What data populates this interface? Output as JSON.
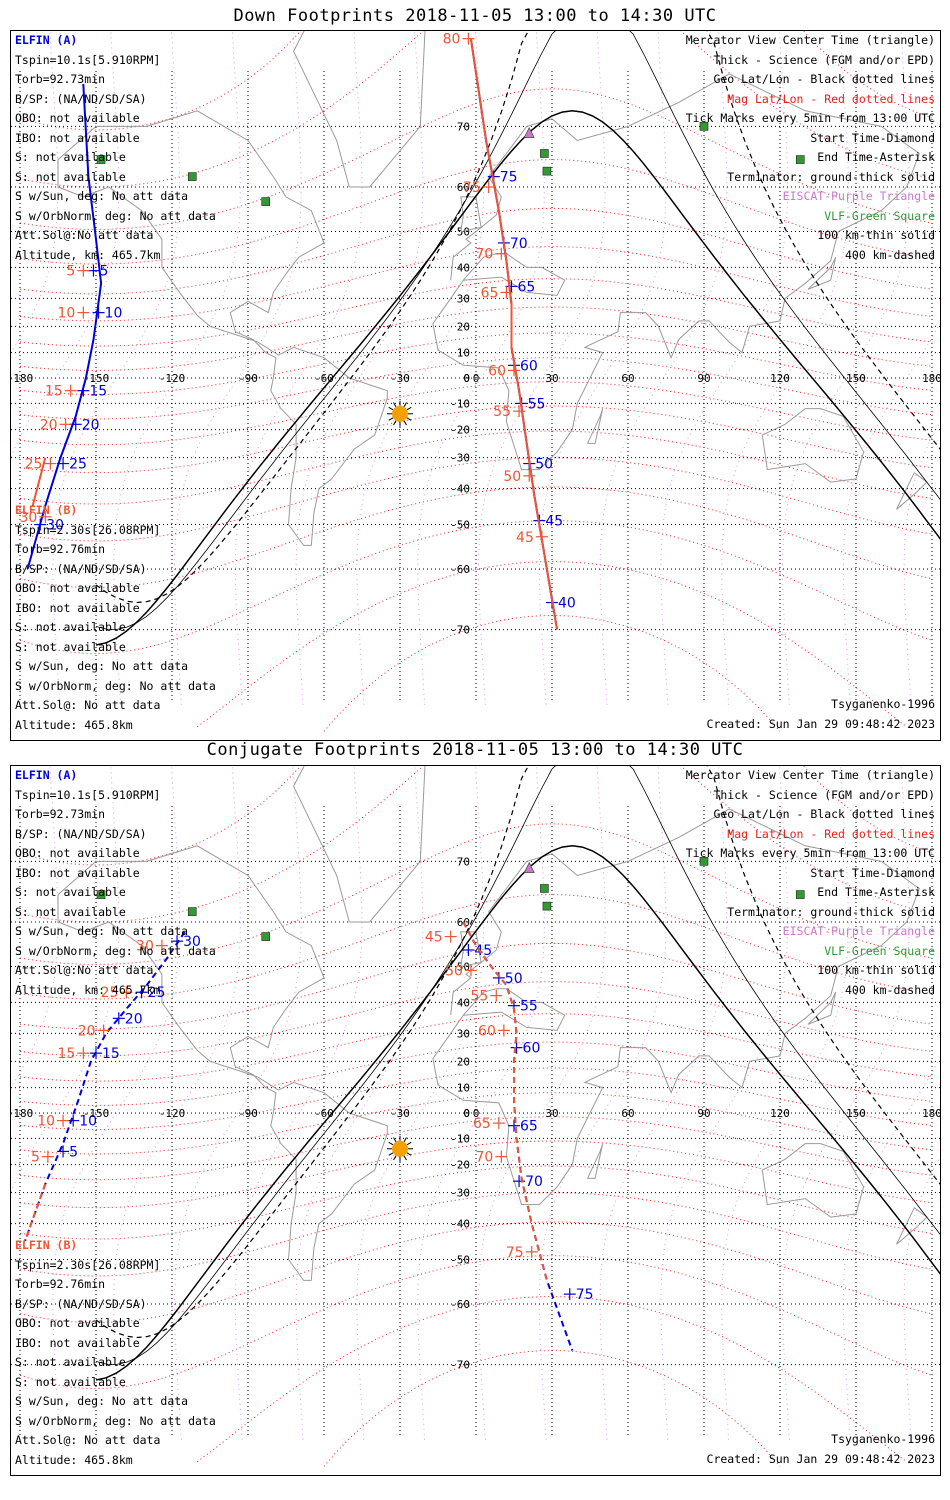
{
  "panels": [
    {
      "title": "Down Footprints 2018-11-05 13:00 to 14:30 UTC",
      "elfin_a": [
        "ELFIN (A)",
        "Tspin=10.1s[5.910RPM]",
        "Torb=92.73min",
        "B/SP: (NA/ND/SD/SA)",
        "OBO: not available",
        "IBO: not available",
        "S: not available",
        "S: not available",
        "S w/Sun, deg: No att data",
        "S w/OrbNorm, deg: No att data",
        "Att.Sol@:No att data",
        "Altitude, km: 465.7km"
      ],
      "elfin_b": [
        "ELFIN (B)",
        "Tspin=2.30s[26.08RPM]",
        "Torb=92.76min",
        "B/SP: (NA/ND/SD/SA)",
        "OBO: not available",
        "IBO: not available",
        "S: not available",
        "S: not available",
        "S w/Sun, deg: No att data",
        "S w/OrbNorm, deg: No att data",
        "Att.Sol@: No att data",
        "Altitude: 465.8km"
      ]
    },
    {
      "title": "Conjugate Footprints 2018-11-05 13:00 to 14:30 UTC",
      "elfin_a": [
        "ELFIN (A)",
        "Tspin=10.1s[5.910RPM]",
        "Torb=92.73min",
        "B/SP: (NA/ND/SD/SA)",
        "OBO: not available",
        "IBO: not available",
        "S: not available",
        "S: not available",
        "S w/Sun, deg: No att data",
        "S w/OrbNorm, deg: No att data",
        "Att.Sol@:No att data",
        "Altitude, km: 465.7km"
      ],
      "elfin_b": [
        "ELFIN (B)",
        "Tspin=2.30s[26.08RPM]",
        "Torb=92.76min",
        "B/SP: (NA/ND/SD/SA)",
        "OBO: not available",
        "IBO: not available",
        "S: not available",
        "S: not available",
        "S w/Sun, deg: No att data",
        "S w/OrbNorm, deg: No att data",
        "Att.Sol@: No att data",
        "Altitude: 465.8km"
      ]
    }
  ],
  "legend": [
    {
      "text": "Mercator View Center Time (triangle)",
      "color": "#000000"
    },
    {
      "text": "Thick - Science (FGM and/or EPD)",
      "color": "#000000"
    },
    {
      "text": "Geo Lat/Lon - Black dotted lines",
      "color": "#000000"
    },
    {
      "text": "Mag Lat/Lon - Red dotted lines",
      "color": "#e8201c"
    },
    {
      "text": "Tick Marks every 5min from 13:00 UTC",
      "color": "#000000"
    },
    {
      "text": "Start Time-Diamond",
      "color": "#000000"
    },
    {
      "text": "End Time-Asterisk",
      "color": "#000000"
    },
    {
      "text": "Terminator: ground-thick solid",
      "color": "#000000"
    },
    {
      "text": "EISCAT-Purple Triangle",
      "color": "#cc77cc"
    },
    {
      "text": "VLF-Green Square",
      "color": "#339933"
    },
    {
      "text": "100 km-thin solid",
      "color": "#000000"
    },
    {
      "text": "400 km-dashed",
      "color": "#000000"
    }
  ],
  "footer": {
    "model": "Tsyganenko-1996",
    "created": "Created: Sun Jan 29 09:48:42 2023"
  },
  "colors": {
    "elfin_a": "#0000dd",
    "elfin_b": "#ee5533",
    "mag_grid": "#ee2222",
    "sun": "#f5a000",
    "eiscat": "#cc77cc",
    "vlf": "#339933"
  },
  "chart_data": [
    {
      "type": "scatter",
      "title": "Down Footprints 2018-11-05 13:00 to 14:30 UTC",
      "projection": "mercator",
      "xlim": [
        -180,
        180
      ],
      "x_ticks": [
        -180,
        -150,
        -120,
        -90,
        -60,
        -30,
        0,
        30,
        60,
        90,
        120,
        150,
        180
      ],
      "y_ticks": [
        70,
        60,
        50,
        40,
        30,
        20,
        10,
        0,
        -10,
        -20,
        -30,
        -40,
        -50,
        -60,
        -70
      ],
      "grid": true,
      "series": [
        {
          "name": "ELFIN (A)",
          "track": [
            [
              -155,
              75
            ],
            [
              -153,
              62
            ],
            [
              -150,
              48
            ],
            [
              -148,
              35
            ],
            [
              -151,
              15
            ],
            [
              -154,
              0
            ],
            [
              -158,
              -15
            ],
            [
              -164,
              -30
            ],
            [
              -170,
              -45
            ],
            [
              -177,
              -60
            ]
          ],
          "ticks": [
            {
              "label": "5",
              "lon": -151,
              "lat": 39
            },
            {
              "label": "10",
              "lon": -149,
              "lat": 25
            },
            {
              "label": "15",
              "lon": -155,
              "lat": -5
            },
            {
              "label": "20",
              "lon": -158,
              "lat": -18
            },
            {
              "label": "25",
              "lon": -163,
              "lat": -32
            },
            {
              "label": "30",
              "lon": -172,
              "lat": -50
            }
          ]
        },
        {
          "name": "ELFIN (A)",
          "track": [
            [
              -2,
              79
            ],
            [
              4,
              68
            ],
            [
              9,
              55
            ],
            [
              12,
              42
            ],
            [
              14,
              28
            ],
            [
              14,
              12
            ],
            [
              17,
              -5
            ],
            [
              20,
              -25
            ],
            [
              23,
              -42
            ],
            [
              27,
              -57
            ],
            [
              32,
              -70
            ]
          ],
          "ticks": [
            {
              "label": "75",
              "lon": 7,
              "lat": 62
            },
            {
              "label": "70",
              "lon": 11,
              "lat": 47
            },
            {
              "label": "65",
              "lon": 14,
              "lat": 34
            },
            {
              "label": "60",
              "lon": 15,
              "lat": 5
            },
            {
              "label": "55",
              "lon": 18,
              "lat": -10
            },
            {
              "label": "50",
              "lon": 21,
              "lat": -32
            },
            {
              "label": "45",
              "lon": 25,
              "lat": -49
            },
            {
              "label": "40",
              "lon": 30,
              "lat": -66
            }
          ]
        },
        {
          "name": "ELFIN (B)",
          "track": [
            [
              -2,
              79
            ],
            [
              4,
              68
            ],
            [
              9,
              55
            ],
            [
              12,
              42
            ],
            [
              14,
              28
            ],
            [
              14,
              12
            ],
            [
              17,
              -5
            ],
            [
              20,
              -25
            ],
            [
              23,
              -42
            ],
            [
              27,
              -57
            ],
            [
              32,
              -70
            ]
          ],
          "ticks": [
            {
              "label": "80",
              "lon": -3,
              "lat": 79
            },
            {
              "label": "75",
              "lon": 5,
              "lat": 60
            },
            {
              "label": "70",
              "lon": 10,
              "lat": 44
            },
            {
              "label": "65",
              "lon": 12,
              "lat": 32
            },
            {
              "label": "60",
              "lon": 15,
              "lat": 3
            },
            {
              "label": "55",
              "lon": 17,
              "lat": -13
            },
            {
              "label": "50",
              "lon": 21,
              "lat": -36
            },
            {
              "label": "45",
              "lon": 26,
              "lat": -53
            }
          ]
        },
        {
          "name": "ELFIN (B)",
          "track": [
            [
              -170,
              -30
            ],
            [
              -175,
              -45
            ]
          ],
          "ticks": [
            {
              "label": "5",
              "lon": -155,
              "lat": 39
            },
            {
              "label": "10",
              "lon": -155,
              "lat": 25
            },
            {
              "label": "15",
              "lon": -160,
              "lat": -5
            },
            {
              "label": "20",
              "lon": -162,
              "lat": -18
            },
            {
              "label": "25",
              "lon": -168,
              "lat": -32
            },
            {
              "label": "30",
              "lon": -170,
              "lat": -48
            }
          ]
        }
      ],
      "sun": {
        "lon": -30,
        "lat": -14
      }
    },
    {
      "type": "scatter",
      "title": "Conjugate Footprints 2018-11-05 13:00 to 14:30 UTC",
      "projection": "mercator",
      "xlim": [
        -180,
        180
      ],
      "x_ticks": [
        -180,
        -150,
        -120,
        -90,
        -60,
        -30,
        0,
        30,
        60,
        90,
        120,
        150,
        180
      ],
      "y_ticks": [
        70,
        60,
        50,
        40,
        30,
        20,
        10,
        0,
        -10,
        -20,
        -30,
        -40,
        -50,
        -60,
        -70
      ],
      "grid": true,
      "series": [
        {
          "name": "ELFIN (A)",
          "track": [
            [
              -115,
              58
            ],
            [
              -122,
              52
            ],
            [
              -130,
              45
            ],
            [
              -138,
              38
            ],
            [
              -146,
              30
            ],
            [
              -152,
              20
            ],
            [
              -157,
              5
            ],
            [
              -163,
              -12
            ],
            [
              -170,
              -27
            ],
            [
              -178,
              -45
            ]
          ],
          "ticks": [
            {
              "label": "30",
              "lon": -118,
              "lat": 56
            },
            {
              "label": "25",
              "lon": -132,
              "lat": 43
            },
            {
              "label": "20",
              "lon": -141,
              "lat": 35
            },
            {
              "label": "15",
              "lon": -150,
              "lat": 23
            },
            {
              "label": "10",
              "lon": -159,
              "lat": -3
            },
            {
              "label": "5",
              "lon": -163,
              "lat": -15
            }
          ]
        },
        {
          "name": "ELFIN (A)",
          "track": [
            [
              -5,
              60
            ],
            [
              0,
              55
            ],
            [
              6,
              50
            ],
            [
              12,
              45
            ],
            [
              15,
              38
            ],
            [
              16,
              30
            ],
            [
              15,
              20
            ],
            [
              15,
              5
            ],
            [
              16,
              -10
            ],
            [
              18,
              -25
            ],
            [
              22,
              -40
            ],
            [
              28,
              -55
            ],
            [
              38,
              -68
            ]
          ],
          "ticks": [
            {
              "label": "45",
              "lon": -3,
              "lat": 54
            },
            {
              "label": "50",
              "lon": 9,
              "lat": 47
            },
            {
              "label": "55",
              "lon": 15,
              "lat": 39
            },
            {
              "label": "60",
              "lon": 16,
              "lat": 25
            },
            {
              "label": "65",
              "lon": 15,
              "lat": -5
            },
            {
              "label": "70",
              "lon": 17,
              "lat": -26
            },
            {
              "label": "75",
              "lon": 37,
              "lat": -58
            }
          ]
        },
        {
          "name": "ELFIN (B)",
          "track": [
            [
              -5,
              60
            ],
            [
              0,
              55
            ],
            [
              6,
              50
            ],
            [
              12,
              45
            ],
            [
              15,
              38
            ],
            [
              16,
              30
            ],
            [
              15,
              20
            ],
            [
              15,
              5
            ],
            [
              16,
              -10
            ],
            [
              18,
              -25
            ],
            [
              22,
              -40
            ],
            [
              28,
              -55
            ]
          ],
          "ticks": [
            {
              "label": "45",
              "lon": -10,
              "lat": 57
            },
            {
              "label": "50",
              "lon": -2,
              "lat": 49
            },
            {
              "label": "55",
              "lon": 8,
              "lat": 42
            },
            {
              "label": "60",
              "lon": 11,
              "lat": 31
            },
            {
              "label": "65",
              "lon": 9,
              "lat": -4
            },
            {
              "label": "70",
              "lon": 10,
              "lat": -17
            },
            {
              "label": "75",
              "lon": 22,
              "lat": -48
            }
          ]
        },
        {
          "name": "ELFIN (B)",
          "track": [
            [
              -170,
              -27
            ],
            [
              -178,
              -45
            ]
          ],
          "ticks": [
            {
              "label": "30",
              "lon": -124,
              "lat": 55
            },
            {
              "label": "25",
              "lon": -138,
              "lat": 43
            },
            {
              "label": "20",
              "lon": -147,
              "lat": 31
            },
            {
              "label": "15",
              "lon": -155,
              "lat": 23
            },
            {
              "label": "10",
              "lon": -163,
              "lat": -3
            },
            {
              "label": "5",
              "lon": -169,
              "lat": -17
            }
          ]
        }
      ],
      "sun": {
        "lon": -30,
        "lat": -14
      }
    }
  ]
}
